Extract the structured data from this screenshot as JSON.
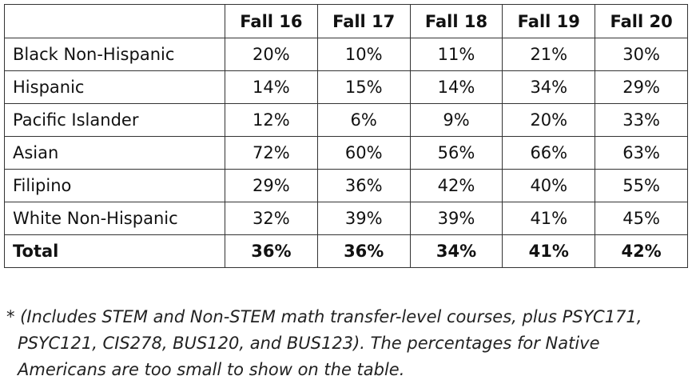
{
  "table": {
    "header": [
      "",
      "Fall 16",
      "Fall 17",
      "Fall 18",
      "Fall 19",
      "Fall 20"
    ],
    "rows": [
      [
        "Black Non-Hispanic",
        "20%",
        "10%",
        "11%",
        "21%",
        "30%"
      ],
      [
        "Hispanic",
        "14%",
        "15%",
        "14%",
        "34%",
        "29%"
      ],
      [
        "Pacific Islander",
        "12%",
        "6%",
        "9%",
        "20%",
        "33%"
      ],
      [
        "Asian",
        "72%",
        "60%",
        "56%",
        "66%",
        "63%"
      ],
      [
        "Filipino",
        "29%",
        "36%",
        "42%",
        "40%",
        "55%"
      ],
      [
        "White Non-Hispanic",
        "32%",
        "39%",
        "39%",
        "41%",
        "45%"
      ]
    ],
    "total": [
      "Total",
      "36%",
      "36%",
      "34%",
      "41%",
      "42%"
    ]
  },
  "footnote": "* (Includes STEM and Non-STEM math transfer-level courses, plus PSYC171, PSYC121, CIS278, BUS120, and BUS123). The percentages for Native Americans are too small to show on the table."
}
